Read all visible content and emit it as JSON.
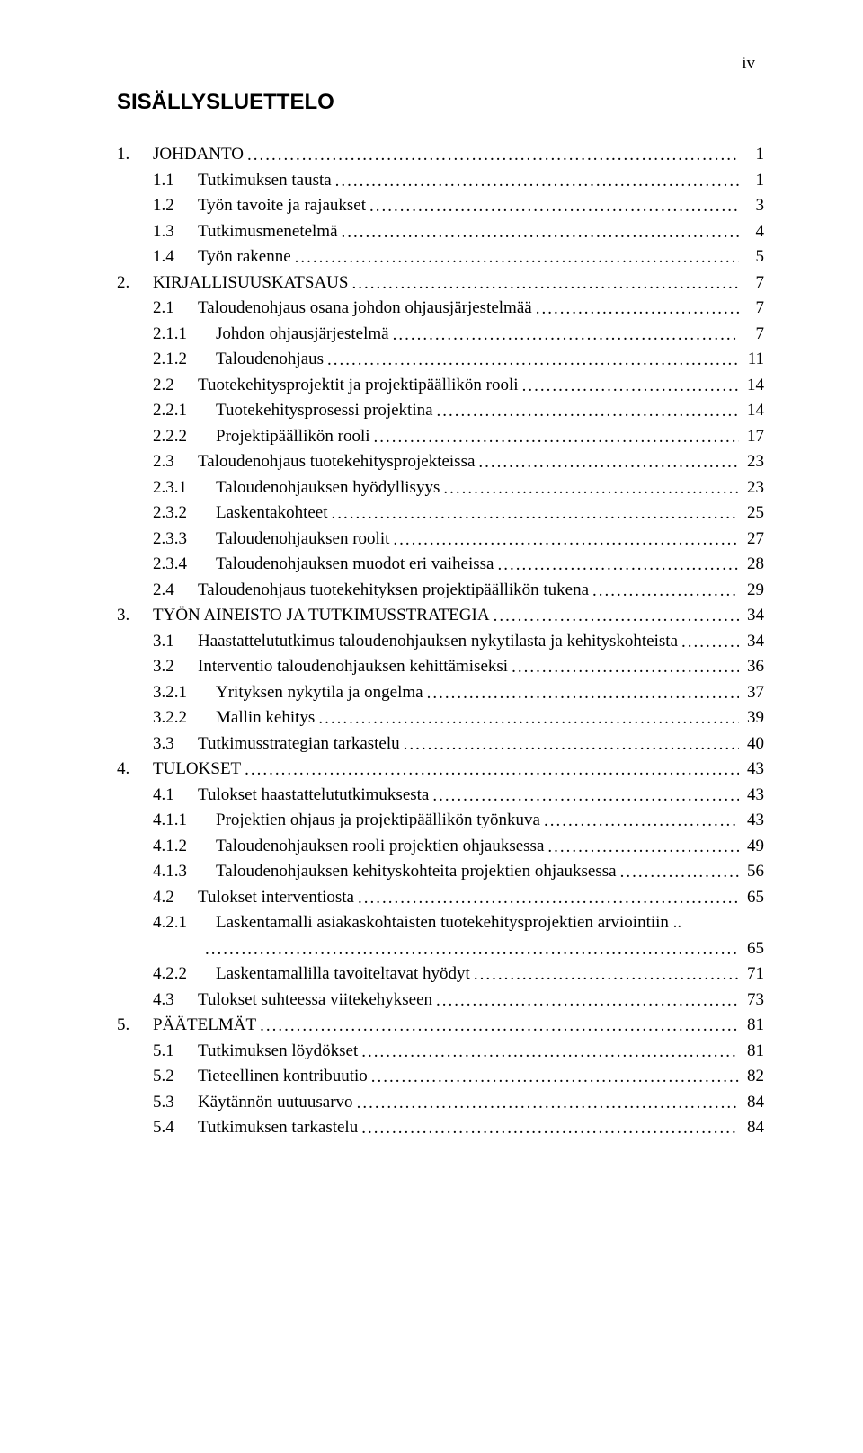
{
  "page_number_label": "iv",
  "title": "SISÄLLYSLUETTELO",
  "entries": [
    {
      "level": 1,
      "num": "1.",
      "text": "JOHDANTO",
      "page": "1"
    },
    {
      "level": 2,
      "num": "1.1",
      "text": "Tutkimuksen tausta",
      "page": "1"
    },
    {
      "level": 2,
      "num": "1.2",
      "text": "Työn tavoite ja rajaukset",
      "page": "3"
    },
    {
      "level": 2,
      "num": "1.3",
      "text": "Tutkimusmenetelmä",
      "page": "4"
    },
    {
      "level": 2,
      "num": "1.4",
      "text": "Työn rakenne",
      "page": "5"
    },
    {
      "level": 1,
      "num": "2.",
      "text": "KIRJALLISUUSKATSAUS",
      "page": "7"
    },
    {
      "level": 2,
      "num": "2.1",
      "text": "Taloudenohjaus osana johdon ohjausjärjestelmää",
      "page": "7"
    },
    {
      "level": 3,
      "num": "2.1.1",
      "text": "Johdon ohjausjärjestelmä",
      "page": "7"
    },
    {
      "level": 3,
      "num": "2.1.2",
      "text": "Taloudenohjaus",
      "page": "11"
    },
    {
      "level": 2,
      "num": "2.2",
      "text": "Tuotekehitysprojektit ja projektipäällikön rooli",
      "page": "14"
    },
    {
      "level": 3,
      "num": "2.2.1",
      "text": "Tuotekehitysprosessi projektina",
      "page": "14"
    },
    {
      "level": 3,
      "num": "2.2.2",
      "text": "Projektipäällikön rooli",
      "page": "17"
    },
    {
      "level": 2,
      "num": "2.3",
      "text": "Taloudenohjaus tuotekehitysprojekteissa",
      "page": "23"
    },
    {
      "level": 3,
      "num": "2.3.1",
      "text": "Taloudenohjauksen hyödyllisyys",
      "page": "23"
    },
    {
      "level": 3,
      "num": "2.3.2",
      "text": "Laskentakohteet",
      "page": "25"
    },
    {
      "level": 3,
      "num": "2.3.3",
      "text": "Taloudenohjauksen roolit",
      "page": "27"
    },
    {
      "level": 3,
      "num": "2.3.4",
      "text": "Taloudenohjauksen muodot eri vaiheissa",
      "page": "28"
    },
    {
      "level": 2,
      "num": "2.4",
      "text": "Taloudenohjaus tuotekehityksen projektipäällikön tukena",
      "page": "29"
    },
    {
      "level": 1,
      "num": "3.",
      "text": "TYÖN AINEISTO JA TUTKIMUSSTRATEGIA",
      "page": "34"
    },
    {
      "level": 2,
      "num": "3.1",
      "text": "Haastattelututkimus taloudenohjauksen nykytilasta ja kehityskohteista",
      "page": "34"
    },
    {
      "level": 2,
      "num": "3.2",
      "text": "Interventio taloudenohjauksen kehittämiseksi",
      "page": "36"
    },
    {
      "level": 3,
      "num": "3.2.1",
      "text": "Yrityksen nykytila ja ongelma",
      "page": "37"
    },
    {
      "level": 3,
      "num": "3.2.2",
      "text": "Mallin kehitys",
      "page": "39"
    },
    {
      "level": 2,
      "num": "3.3",
      "text": "Tutkimusstrategian tarkastelu",
      "page": "40"
    },
    {
      "level": 1,
      "num": "4.",
      "text": "TULOKSET",
      "page": "43"
    },
    {
      "level": 2,
      "num": "4.1",
      "text": "Tulokset haastattelututkimuksesta",
      "page": "43"
    },
    {
      "level": 3,
      "num": "4.1.1",
      "text": "Projektien ohjaus ja projektipäällikön työnkuva",
      "page": "43"
    },
    {
      "level": 3,
      "num": "4.1.2",
      "text": "Taloudenohjauksen rooli projektien ohjauksessa",
      "page": "49"
    },
    {
      "level": 3,
      "num": "4.1.3",
      "text": "Taloudenohjauksen kehityskohteita projektien ohjauksessa",
      "page": "56"
    },
    {
      "level": 2,
      "num": "4.2",
      "text": "Tulokset interventiosta",
      "page": "65"
    },
    {
      "level": 3,
      "num": "4.2.1",
      "text": "Laskentamalli asiakaskohtaisten tuotekehitysprojektien arviointiin ..",
      "page": "",
      "wrap_page": "65"
    },
    {
      "level": 3,
      "num": "4.2.2",
      "text": "Laskentamallilla tavoiteltavat hyödyt",
      "page": "71"
    },
    {
      "level": 2,
      "num": "4.3",
      "text": "Tulokset suhteessa viitekehykseen",
      "page": "73"
    },
    {
      "level": 1,
      "num": "5.",
      "text": "PÄÄTELMÄT",
      "page": "81"
    },
    {
      "level": 2,
      "num": "5.1",
      "text": "Tutkimuksen löydökset",
      "page": "81"
    },
    {
      "level": 2,
      "num": "5.2",
      "text": "Tieteellinen kontribuutio",
      "page": "82"
    },
    {
      "level": 2,
      "num": "5.3",
      "text": "Käytännön uutuusarvo",
      "page": "84"
    },
    {
      "level": 2,
      "num": "5.4",
      "text": "Tutkimuksen tarkastelu",
      "page": "84"
    }
  ]
}
